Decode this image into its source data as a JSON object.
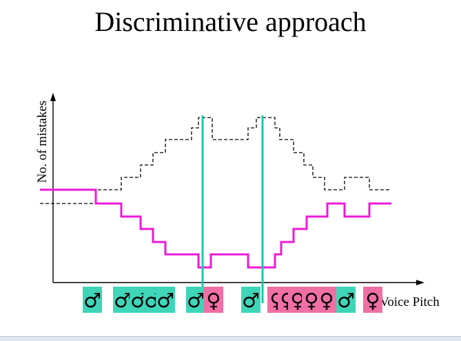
{
  "title": "Discriminative approach",
  "axes": {
    "ylabel": "No. of mistakes",
    "xlabel": "Voice Pitch"
  },
  "colors": {
    "male_box": "#3fd5b8",
    "female_box": "#f06fa4",
    "threshold_line": "#18c9a8",
    "mistakes_line": "#ef18d8",
    "dashed_line": "#000000"
  },
  "samples": [
    {
      "symbol": "♂",
      "gender": "male"
    },
    {
      "symbol": "♂",
      "gender": "male"
    },
    {
      "symbol": "♂",
      "gender": "male"
    },
    {
      "symbol": "♂",
      "gender": "male"
    },
    {
      "symbol": "♂",
      "gender": "male"
    },
    {
      "symbol": "♂",
      "gender": "male"
    },
    {
      "symbol": "♀",
      "gender": "female"
    },
    {
      "symbol": "♂",
      "gender": "male"
    },
    {
      "symbol": "♀",
      "gender": "female"
    },
    {
      "symbol": "♀",
      "gender": "female"
    },
    {
      "symbol": "♀",
      "gender": "female"
    },
    {
      "symbol": "♀",
      "gender": "female"
    },
    {
      "symbol": "♀",
      "gender": "female"
    },
    {
      "symbol": "♂",
      "gender": "male"
    },
    {
      "symbol": "♀",
      "gender": "female"
    }
  ]
}
